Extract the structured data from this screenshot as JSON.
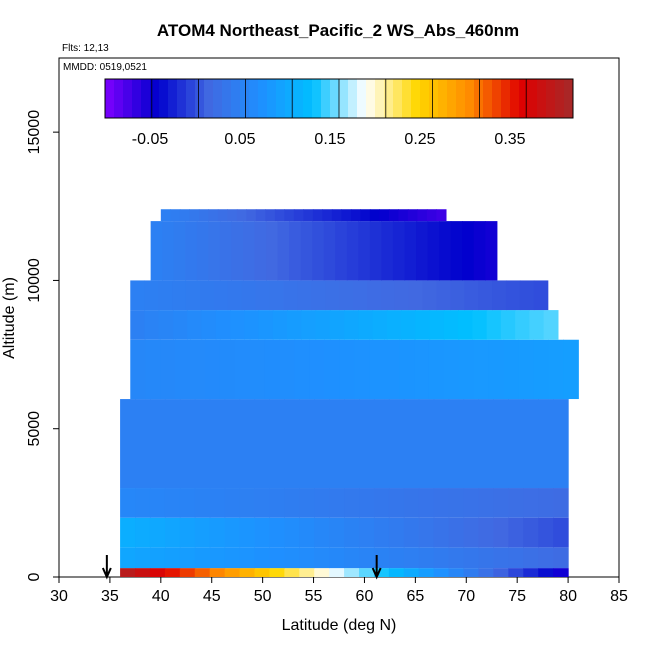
{
  "chart_data": {
    "type": "heatmap",
    "title": "ATOM4 Northeast_Pacific_2 WS_Abs_460nm",
    "flights_note": "Flts: 12,13",
    "date_note": "MMDD: 0519,0521",
    "xlabel": "Latitude (deg N)",
    "ylabel": "Altitude (m)",
    "xlim": [
      30,
      85
    ],
    "ylim": [
      0,
      17500
    ],
    "xticks": [
      "30",
      "35",
      "40",
      "45",
      "50",
      "55",
      "60",
      "65",
      "70",
      "75",
      "80",
      "85"
    ],
    "yticks": [
      "0",
      "5000",
      "10000",
      "15000"
    ],
    "colorbar": {
      "range": [
        -0.1,
        0.42
      ],
      "tick_labels": [
        "-0.05",
        "0.05",
        "0.15",
        "0.25",
        "0.35"
      ],
      "tick_values": [
        -0.05,
        0.05,
        0.15,
        0.25,
        0.35
      ],
      "colors": [
        "#7f00ff",
        "#0000cd",
        "#4169e1",
        "#1e90ff",
        "#00bfff",
        "#ffffff",
        "#ffd700",
        "#ff8c00",
        "#e00000",
        "#a52a2a"
      ]
    },
    "arrow_markers_latitude": [
      34.7,
      61.2
    ],
    "layers": [
      {
        "alt_bottom": 0,
        "alt_top": 300,
        "lat_start": 36,
        "lat_end": 80,
        "values_start": 0.4,
        "values_end": -0.05
      },
      {
        "alt_bottom": 300,
        "alt_top": 1000,
        "lat_start": 36,
        "lat_end": 80,
        "values_start": 0.1,
        "values_end": 0.02
      },
      {
        "alt_bottom": 1000,
        "alt_top": 2000,
        "lat_start": 36,
        "lat_end": 80,
        "values_start": 0.11,
        "values_end": 0.0
      },
      {
        "alt_bottom": 2000,
        "alt_top": 3000,
        "lat_start": 36,
        "lat_end": 80,
        "values_start": 0.06,
        "values_end": 0.02
      },
      {
        "alt_bottom": 3000,
        "alt_top": 6000,
        "lat_start": 36,
        "lat_end": 80,
        "values_start": 0.05,
        "values_end": 0.05
      },
      {
        "alt_bottom": 6000,
        "alt_top": 8000,
        "lat_start": 37,
        "lat_end": 81,
        "values_start": 0.06,
        "values_end": 0.09
      },
      {
        "alt_bottom": 8000,
        "alt_top": 9000,
        "lat_start": 37,
        "lat_end": 79,
        "values_start": 0.05,
        "values_end": 0.15
      },
      {
        "alt_bottom": 9000,
        "alt_top": 10000,
        "lat_start": 37,
        "lat_end": 78,
        "values_start": 0.05,
        "values_end": 0.0
      },
      {
        "alt_bottom": 10000,
        "alt_top": 12000,
        "lat_start": 39,
        "lat_end": 73,
        "values_start": 0.05,
        "values_end": -0.05
      },
      {
        "alt_bottom": 12000,
        "alt_top": 12400,
        "lat_start": 40,
        "lat_end": 68,
        "values_start": 0.05,
        "values_end": -0.07
      }
    ]
  }
}
